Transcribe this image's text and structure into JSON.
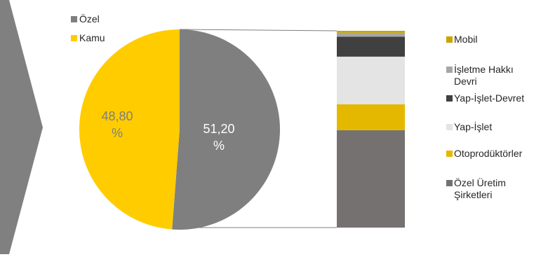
{
  "chart_data": [
    {
      "type": "pie",
      "slices": [
        {
          "name": "Özel",
          "value": 51.2,
          "label_line1": "51,20",
          "label_line2": "%",
          "color": "#7f7f7f",
          "label_color": "#ffffff"
        },
        {
          "name": "Kamu",
          "value": 48.8,
          "label_line1": "48,80",
          "label_line2": "%",
          "color": "#ffcc00",
          "label_color": "#7f7f7f"
        }
      ],
      "legend": {
        "placement": "top-left",
        "items": [
          "Özel",
          "Kamu"
        ]
      }
    },
    {
      "type": "bar",
      "stacked": true,
      "total_of": "Özel",
      "series": [
        {
          "name": "Özel Üretim Şirketleri",
          "value": 49,
          "color": "#767171"
        },
        {
          "name": "Otoprodüktörler",
          "value": 13,
          "color": "#e5b800"
        },
        {
          "name": "Yap-İşlet",
          "value": 24,
          "color": "#e4e4e4"
        },
        {
          "name": "Yap-İşlet-Devret",
          "value": 10,
          "color": "#404040"
        },
        {
          "name": "İşletme Hakkı Devri",
          "value": 2,
          "color": "#a6a6a6"
        },
        {
          "name": "Mobil",
          "value": 1,
          "color": "#c8a400"
        }
      ],
      "legend": {
        "placement": "right",
        "items": [
          {
            "lines": [
              "Mobil"
            ],
            "color": "#c8a400"
          },
          {
            "lines": [
              "İşletme Hakkı",
              "Devri"
            ],
            "color": "#a6a6a6"
          },
          {
            "lines": [
              "Yap-İşlet-Devret"
            ],
            "color": "#404040"
          },
          {
            "lines": [
              "Yap-İşlet"
            ],
            "color": "#e4e4e4"
          },
          {
            "lines": [
              "Otoprodüktörler"
            ],
            "color": "#e5b800"
          },
          {
            "lines": [
              "Özel Üretim",
              "Şirketleri"
            ],
            "color": "#767171"
          }
        ]
      }
    }
  ],
  "arrow_color": "#808080",
  "connector_color": "#7f7f7f"
}
